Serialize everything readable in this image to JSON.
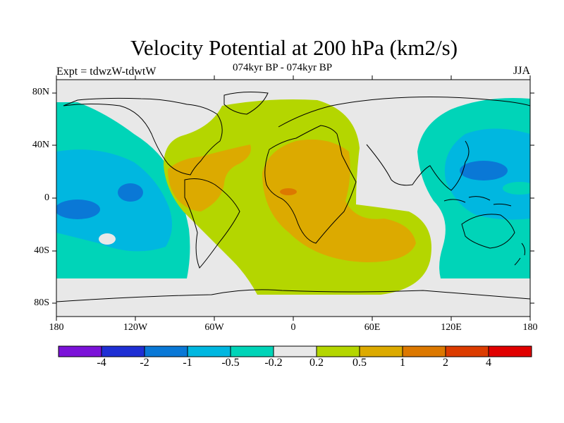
{
  "chart_data": {
    "type": "map",
    "title": "Velocity Potential at 200 hPa (km2/s)",
    "subtitle": "074kyr BP - 074kyr BP",
    "left_label": "Expt = tdwzW-tdwtW",
    "right_label": "JJA",
    "lat_ticks": [
      "80N",
      "40N",
      "0",
      "40S",
      "80S"
    ],
    "lon_ticks": [
      "180",
      "120W",
      "60W",
      "0",
      "60E",
      "120E",
      "180"
    ],
    "colorbar": {
      "levels": [
        "-4",
        "-2",
        "-1",
        "-0.5",
        "-0.2",
        "0.2",
        "0.5",
        "1",
        "2",
        "4"
      ],
      "colors": [
        "#7b12d8",
        "#1f2fd4",
        "#0a78d6",
        "#00b7e0",
        "#00d4b8",
        "#e8e8e8",
        "#b4d600",
        "#dcaa00",
        "#dc7800",
        "#dc3c00",
        "#e00000"
      ]
    },
    "grid": false
  }
}
